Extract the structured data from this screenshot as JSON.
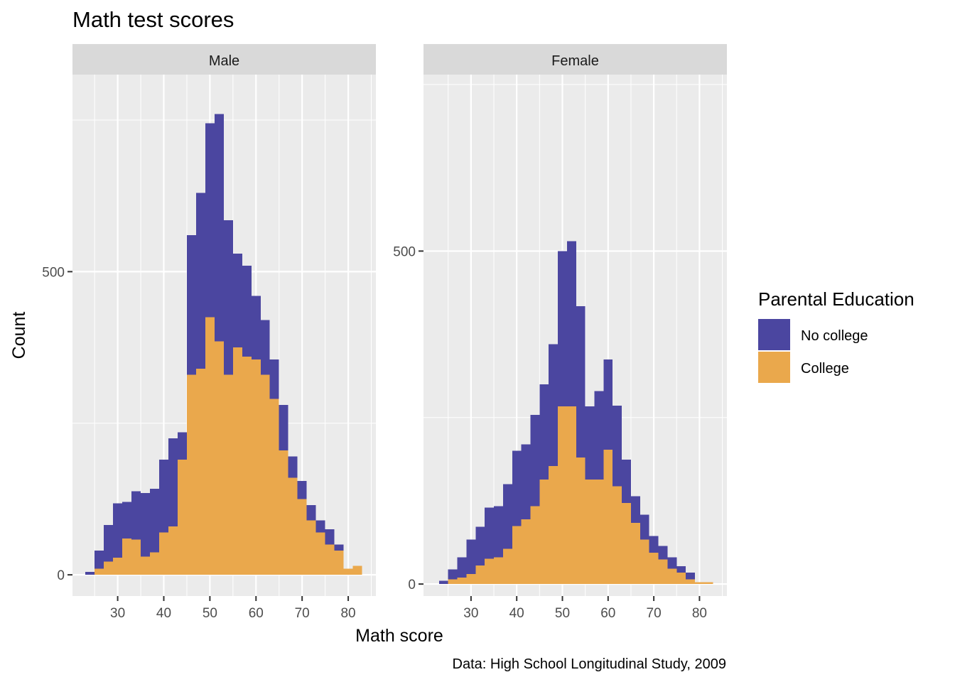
{
  "chart_data": {
    "type": "bar",
    "subtype": "stacked-histogram",
    "title": "Math test scores",
    "xlabel": "Math score",
    "ylabel": "Count",
    "caption": "Data: High School Longitudinal Study, 2009",
    "legend": {
      "title": "Parental Education",
      "position": "right",
      "entries": [
        {
          "name": "No college",
          "color": "#4B46A0"
        },
        {
          "name": "College",
          "color": "#EAA84C"
        }
      ]
    },
    "bin_width": 2,
    "x_ticks": [
      30,
      40,
      50,
      60,
      70,
      80
    ],
    "x_tick_labels": [
      "30",
      "40",
      "50",
      "60",
      "70",
      "80"
    ],
    "facets": [
      {
        "label": "Male",
        "xlim": [
          20.2,
          86.0
        ],
        "ylim": [
          -35,
          825
        ],
        "y_ticks": [
          0,
          500
        ],
        "y_tick_labels": [
          "0",
          "500"
        ],
        "bins": [
          24,
          26,
          28,
          30,
          32,
          34,
          36,
          38,
          40,
          42,
          44,
          46,
          48,
          50,
          52,
          54,
          56,
          58,
          60,
          62,
          64,
          66,
          68,
          70,
          72,
          74,
          76,
          78,
          80,
          82
        ],
        "series": [
          {
            "name": "College",
            "values": [
              0,
              10,
              22,
              28,
              60,
              58,
              30,
              37,
              70,
              80,
              190,
              330,
              340,
              425,
              385,
              330,
              375,
              360,
              355,
              330,
              290,
              205,
              160,
              125,
              90,
              70,
              50,
              40,
              10,
              15
            ]
          },
          {
            "name": "No college",
            "values": [
              5,
              30,
              60,
              90,
              60,
              80,
              105,
              105,
              120,
              145,
              45,
              230,
              290,
              320,
              375,
              255,
              155,
              150,
              105,
              90,
              65,
              75,
              35,
              30,
              25,
              20,
              25,
              10,
              0,
              0
            ]
          }
        ]
      },
      {
        "label": "Female",
        "xlim": [
          19.6,
          86.0
        ],
        "ylim": [
          -18,
          765
        ],
        "y_ticks": [
          0,
          500
        ],
        "y_tick_labels": [
          "0",
          "500"
        ],
        "bins": [
          24,
          26,
          28,
          30,
          32,
          34,
          36,
          38,
          40,
          42,
          44,
          46,
          48,
          50,
          52,
          54,
          56,
          58,
          60,
          62,
          64,
          66,
          68,
          70,
          72,
          74,
          76,
          78,
          80,
          82
        ],
        "series": [
          {
            "name": "College",
            "values": [
              0,
              7,
              10,
              15,
              28,
              38,
              40,
              53,
              87,
              97,
              117,
              157,
              177,
              267,
              267,
              190,
              157,
              157,
              202,
              147,
              122,
              92,
              67,
              47,
              37,
              23,
              17,
              7,
              3,
              3
            ]
          },
          {
            "name": "No college",
            "values": [
              5,
              15,
              30,
              52,
              58,
              77,
              77,
              97,
              113,
              113,
              137,
              143,
              183,
              233,
              248,
              227,
              110,
              133,
              135,
              121,
              65,
              40,
              37,
              25,
              20,
              17,
              10,
              10,
              0,
              0
            ]
          }
        ]
      }
    ]
  }
}
